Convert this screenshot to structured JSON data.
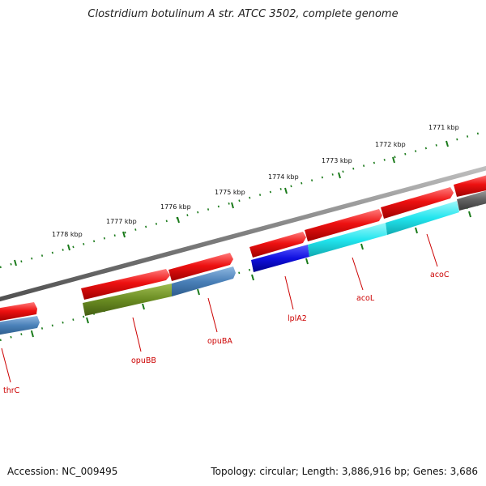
{
  "title": "Clostridium botulinum A str. ATCC 3502, complete genome",
  "footer": {
    "accession": "Accession: NC_009495",
    "summary": "Topology: circular; Length: 3,886,916 bp; Genes: 3,686"
  },
  "ruler_labels": [
    "1771 kbp",
    "1772 kbp",
    "1773 kbp",
    "1774 kbp",
    "1775 kbp",
    "1776 kbp",
    "1777 kbp",
    "1778 kbp"
  ],
  "gene_labels": [
    "acoC",
    "acoL",
    "lplA2",
    "opuBA",
    "opuBB",
    "thrC"
  ],
  "colors": {
    "backbone": "#808080",
    "forward_gene": "#ee1111",
    "acoC": "#22e5ee",
    "acoL": "#22e5ee",
    "lplA2": "#1010e0",
    "opuBA": "#4a80b8",
    "opuBB": "#6a8c22",
    "thrC": "#4a80b8",
    "unlabeled": "#606060",
    "ticks": "#1a7a1a",
    "label": "#cc0000"
  }
}
